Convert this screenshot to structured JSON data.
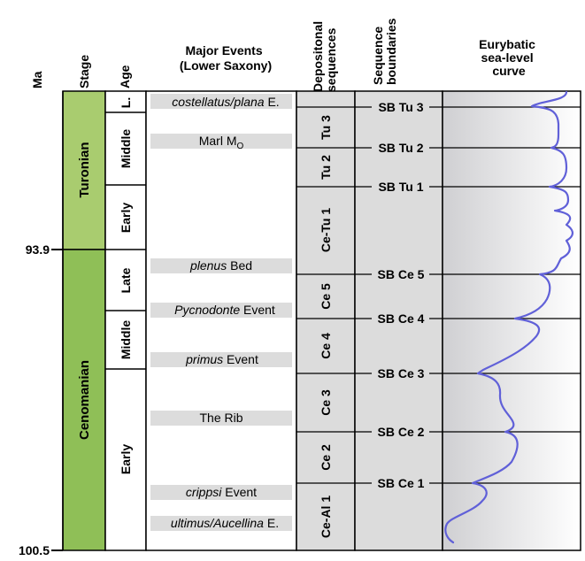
{
  "headers": {
    "ma": "Ma",
    "stage": "Stage",
    "age": "Age",
    "events": [
      "Major Events",
      "(Lower Saxony)"
    ],
    "depositional": [
      "Depositonal",
      "sequences"
    ],
    "boundaries": [
      "Sequence",
      "boundaries"
    ],
    "curve": [
      "Eurybatic",
      "sea-level",
      "curve"
    ]
  },
  "ma_ticks": {
    "top": "93.9",
    "bottom": "100.5"
  },
  "stages": {
    "turonian": "Turonian",
    "cenomanian": "Cenomanian"
  },
  "ages": {
    "t_late": "L.",
    "t_middle": "Middle",
    "t_early": "Early",
    "c_late": "Late",
    "c_middle": "Middle",
    "c_early": "Early"
  },
  "events": {
    "costellatus": {
      "italic": "costellatus/plana",
      "rest": " E."
    },
    "marl": {
      "main": "Marl M",
      "sub": "O"
    },
    "plenus": {
      "italic": "plenus",
      "rest": " Bed"
    },
    "pycnodonte": {
      "italic": "Pycnodonte",
      "rest": " Event"
    },
    "primus": {
      "italic": "primus",
      "rest": " Event"
    },
    "rib": {
      "main": "The Rib"
    },
    "crippsi": {
      "italic": "crippsi",
      "rest": " Event"
    },
    "ultimus": {
      "italic": "ultimus/Aucellina",
      "rest": " E."
    }
  },
  "sequences": {
    "tu3": "Tu 3",
    "tu2": "Tu 2",
    "cetu1": "Ce-Tu 1",
    "ce5": "Ce 5",
    "ce4": "Ce 4",
    "ce3": "Ce 3",
    "ce2": "Ce 2",
    "ceal1": "Ce-Al 1"
  },
  "boundaries": {
    "sbtu3": "SB Tu 3",
    "sbtu2": "SB Tu 2",
    "sbtu1": "SB Tu 1",
    "sbce5": "SB Ce 5",
    "sbce4": "SB Ce 4",
    "sbce3": "SB Ce 3",
    "sbce2": "SB Ce 2",
    "sbce1": "SB Ce 1"
  },
  "colors": {
    "turonian": "#a9cc6f",
    "cenomanian": "#8fbf57",
    "event_band": "#dcdcdc",
    "sequence_bg": "#dcdcdc",
    "curve": "#6060d8"
  }
}
